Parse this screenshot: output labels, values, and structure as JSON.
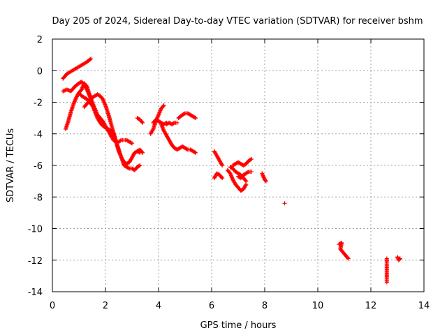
{
  "chart_data": {
    "type": "scatter",
    "title": "Day 205 of 2024, Sidereal Day-to-day VTEC variation (SDTVAR) for receiver bshm",
    "xlabel": "GPS time / hours",
    "ylabel": "SDTVAR / TECUs",
    "xlim": [
      0,
      14
    ],
    "ylim": [
      -14,
      2
    ],
    "x_ticks": [
      0,
      2,
      4,
      6,
      8,
      10,
      12,
      14
    ],
    "y_ticks": [
      2,
      0,
      -2,
      -4,
      -6,
      -8,
      -10,
      -12,
      -14
    ],
    "x_tick_labels": [
      "0",
      "2",
      "4",
      "6",
      "8",
      "10",
      "12",
      "14"
    ],
    "y_tick_labels": [
      "2",
      "0",
      "-2",
      "-4",
      "-6",
      "-8",
      "-10",
      "-12",
      "-14"
    ],
    "grid": true,
    "marker": "+",
    "colors": {
      "series": "#ff0000",
      "grid": "#a0a0a0",
      "axis": "#000000"
    },
    "series": [
      {
        "name": "SDTVAR",
        "tracks": [
          [
            [
              0.4,
              -0.5
            ],
            [
              0.55,
              -0.2
            ],
            [
              0.7,
              -0.05
            ],
            [
              0.85,
              0.1
            ],
            [
              1.0,
              0.25
            ],
            [
              1.15,
              0.4
            ],
            [
              1.3,
              0.55
            ],
            [
              1.45,
              0.75
            ]
          ],
          [
            [
              0.4,
              -1.3
            ],
            [
              0.55,
              -1.2
            ],
            [
              0.7,
              -1.3
            ],
            [
              0.85,
              -1.0
            ],
            [
              1.0,
              -0.8
            ],
            [
              1.1,
              -0.7
            ],
            [
              1.2,
              -0.9
            ],
            [
              1.3,
              -1.2
            ],
            [
              1.4,
              -1.6
            ],
            [
              1.5,
              -2.0
            ],
            [
              1.6,
              -2.4
            ],
            [
              1.7,
              -2.8
            ],
            [
              1.8,
              -3.0
            ],
            [
              1.9,
              -3.2
            ],
            [
              2.0,
              -3.5
            ],
            [
              2.1,
              -3.8
            ],
            [
              2.2,
              -4.1
            ],
            [
              2.3,
              -4.4
            ],
            [
              2.4,
              -4.5
            ],
            [
              2.5,
              -4.5
            ],
            [
              2.6,
              -4.4
            ],
            [
              2.7,
              -4.4
            ],
            [
              2.8,
              -4.4
            ],
            [
              2.9,
              -4.5
            ],
            [
              3.0,
              -4.6
            ]
          ],
          [
            [
              0.5,
              -3.7
            ],
            [
              0.6,
              -3.2
            ],
            [
              0.7,
              -2.6
            ],
            [
              0.8,
              -2.1
            ],
            [
              0.9,
              -1.7
            ],
            [
              1.0,
              -1.4
            ],
            [
              1.1,
              -1.2
            ],
            [
              1.2,
              -0.8
            ],
            [
              1.3,
              -1.0
            ],
            [
              1.4,
              -1.5
            ],
            [
              1.5,
              -2.0
            ],
            [
              1.6,
              -2.6
            ],
            [
              1.7,
              -3.0
            ],
            [
              1.8,
              -3.3
            ],
            [
              1.9,
              -3.5
            ],
            [
              2.0,
              -3.6
            ],
            [
              2.1,
              -3.7
            ],
            [
              2.2,
              -3.8
            ],
            [
              2.3,
              -4.0
            ],
            [
              2.4,
              -4.5
            ],
            [
              2.5,
              -5.0
            ],
            [
              2.6,
              -5.5
            ],
            [
              2.7,
              -6.0
            ],
            [
              2.8,
              -6.1
            ],
            [
              2.9,
              -6.2
            ],
            [
              3.0,
              -6.2
            ],
            [
              3.1,
              -6.3
            ],
            [
              3.2,
              -6.1
            ],
            [
              3.3,
              -6.0
            ]
          ],
          [
            [
              1.0,
              -1.4
            ],
            [
              1.1,
              -1.6
            ],
            [
              1.2,
              -1.7
            ],
            [
              1.3,
              -1.8
            ],
            [
              1.4,
              -2.0
            ],
            [
              1.5,
              -2.2
            ],
            [
              1.6,
              -2.5
            ]
          ],
          [
            [
              1.2,
              -2.3
            ],
            [
              1.35,
              -2.0
            ],
            [
              1.5,
              -1.7
            ],
            [
              1.6,
              -1.6
            ],
            [
              1.7,
              -1.5
            ],
            [
              1.8,
              -1.6
            ],
            [
              1.9,
              -1.8
            ],
            [
              2.0,
              -2.2
            ],
            [
              2.1,
              -2.7
            ],
            [
              2.2,
              -3.3
            ],
            [
              2.3,
              -3.9
            ],
            [
              2.4,
              -4.5
            ],
            [
              2.5,
              -5.1
            ],
            [
              2.6,
              -5.5
            ],
            [
              2.7,
              -5.8
            ],
            [
              2.8,
              -5.9
            ],
            [
              2.9,
              -5.8
            ],
            [
              3.0,
              -5.5
            ],
            [
              3.1,
              -5.2
            ],
            [
              3.2,
              -5.1
            ],
            [
              3.3,
              -5.2
            ]
          ],
          [
            [
              3.2,
              -3.0
            ],
            [
              3.3,
              -3.1
            ],
            [
              3.4,
              -3.3
            ]
          ],
          [
            [
              3.2,
              -5.1
            ],
            [
              3.3,
              -5.0
            ],
            [
              3.4,
              -5.2
            ]
          ],
          [
            [
              3.7,
              -4.0
            ],
            [
              3.8,
              -3.7
            ],
            [
              3.9,
              -3.2
            ],
            [
              4.0,
              -2.8
            ],
            [
              4.1,
              -2.4
            ],
            [
              4.2,
              -2.2
            ]
          ],
          [
            [
              3.8,
              -3.3
            ],
            [
              3.9,
              -3.1
            ],
            [
              4.0,
              -3.2
            ],
            [
              4.1,
              -3.3
            ],
            [
              4.2,
              -3.4
            ],
            [
              4.3,
              -3.3
            ]
          ],
          [
            [
              4.1,
              -3.4
            ],
            [
              4.2,
              -3.8
            ],
            [
              4.3,
              -4.1
            ],
            [
              4.4,
              -4.4
            ],
            [
              4.5,
              -4.7
            ],
            [
              4.6,
              -4.9
            ],
            [
              4.7,
              -5.0
            ],
            [
              4.8,
              -4.9
            ],
            [
              4.9,
              -4.8
            ],
            [
              5.0,
              -4.9
            ],
            [
              5.1,
              -5.0
            ],
            [
              5.2,
              -5.0
            ],
            [
              5.3,
              -5.1
            ],
            [
              5.4,
              -5.2
            ]
          ],
          [
            [
              4.3,
              -3.4
            ],
            [
              4.4,
              -3.3
            ],
            [
              4.5,
              -3.4
            ],
            [
              4.6,
              -3.3
            ],
            [
              4.7,
              -3.3
            ]
          ],
          [
            [
              4.75,
              -3.0
            ],
            [
              4.9,
              -2.8
            ],
            [
              5.0,
              -2.7
            ],
            [
              5.1,
              -2.7
            ],
            [
              5.2,
              -2.8
            ],
            [
              5.3,
              -2.9
            ],
            [
              5.4,
              -3.0
            ]
          ],
          [
            [
              6.1,
              -5.1
            ],
            [
              6.2,
              -5.4
            ],
            [
              6.3,
              -5.7
            ],
            [
              6.4,
              -6.0
            ]
          ],
          [
            [
              6.1,
              -6.8
            ],
            [
              6.2,
              -6.5
            ],
            [
              6.3,
              -6.6
            ],
            [
              6.4,
              -6.8
            ]
          ],
          [
            [
              6.6,
              -6.3
            ],
            [
              6.7,
              -6.5
            ],
            [
              6.8,
              -6.9
            ],
            [
              6.9,
              -7.2
            ],
            [
              7.0,
              -7.4
            ],
            [
              7.1,
              -7.6
            ],
            [
              7.2,
              -7.5
            ],
            [
              7.3,
              -7.2
            ]
          ],
          [
            [
              6.7,
              -6.1
            ],
            [
              6.8,
              -6.2
            ],
            [
              6.9,
              -6.4
            ],
            [
              7.0,
              -6.5
            ],
            [
              7.1,
              -6.6
            ],
            [
              7.2,
              -6.8
            ],
            [
              7.3,
              -7.0
            ]
          ],
          [
            [
              6.8,
              -6.0
            ],
            [
              6.9,
              -5.9
            ],
            [
              7.0,
              -5.8
            ],
            [
              7.1,
              -5.9
            ],
            [
              7.2,
              -6.0
            ],
            [
              7.3,
              -5.9
            ],
            [
              7.4,
              -5.7
            ],
            [
              7.5,
              -5.6
            ]
          ],
          [
            [
              7.0,
              -6.7
            ],
            [
              7.1,
              -6.8
            ],
            [
              7.2,
              -6.6
            ],
            [
              7.3,
              -6.5
            ],
            [
              7.4,
              -6.4
            ],
            [
              7.5,
              -6.4
            ]
          ],
          [
            [
              7.9,
              -6.5
            ],
            [
              7.95,
              -6.7
            ],
            [
              8.0,
              -6.9
            ],
            [
              8.05,
              -7.0
            ]
          ],
          [
            [
              8.75,
              -8.4
            ]
          ],
          [
            [
              10.8,
              -11.0
            ],
            [
              10.9,
              -10.9
            ],
            [
              10.85,
              -11.3
            ],
            [
              10.95,
              -11.5
            ],
            [
              11.0,
              -11.6
            ],
            [
              11.1,
              -11.8
            ],
            [
              11.15,
              -11.9
            ]
          ],
          [
            [
              12.6,
              -11.9
            ],
            [
              12.6,
              -12.9
            ],
            [
              12.6,
              -13.4
            ]
          ],
          [
            [
              13.0,
              -11.8
            ],
            [
              13.05,
              -12.0
            ],
            [
              13.1,
              -11.9
            ]
          ]
        ]
      }
    ]
  }
}
